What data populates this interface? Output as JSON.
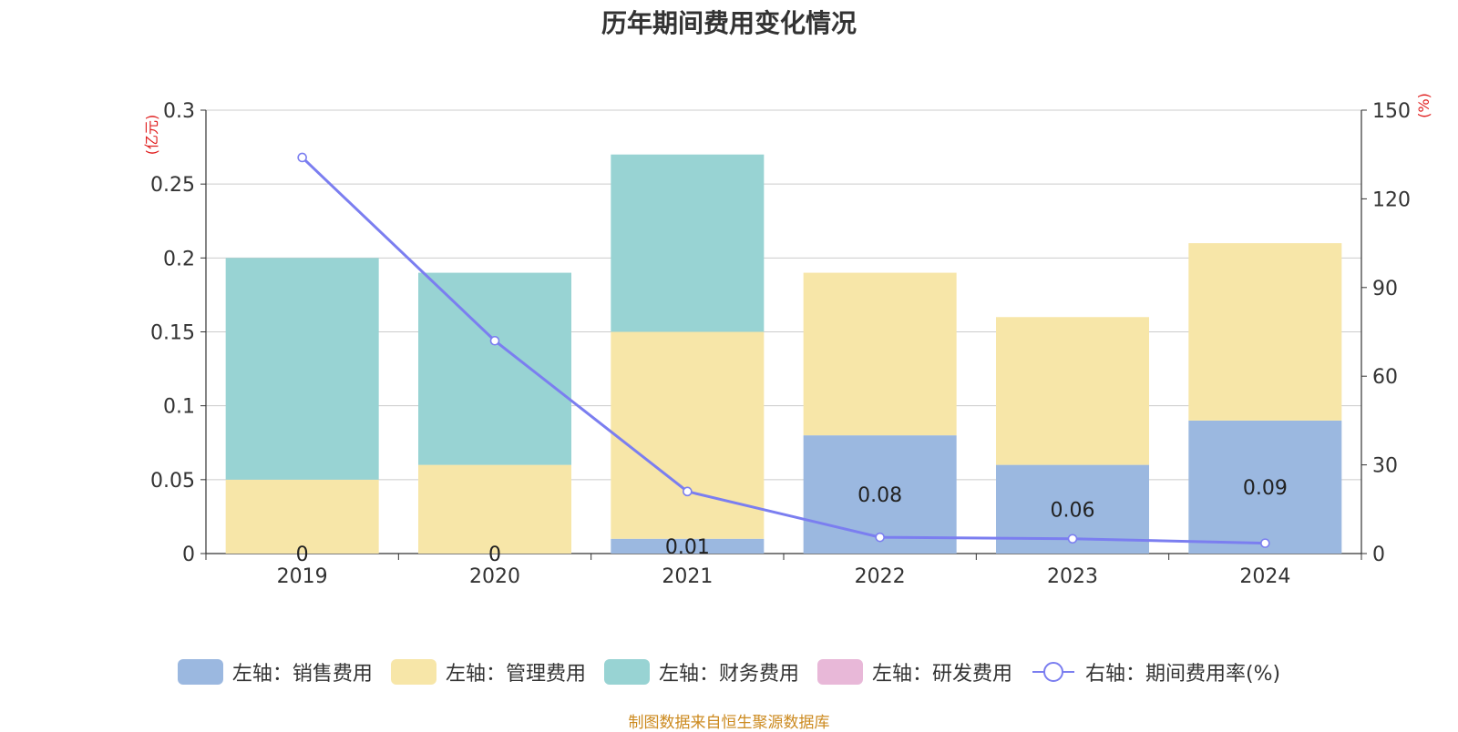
{
  "title": "历年期间费用变化情况",
  "left_axis_unit": "(亿元)",
  "right_axis_unit": "(%)",
  "source_note": "制图数据来自恒生聚源数据库",
  "colors": {
    "sales": "#9bb8e0",
    "admin": "#f7e6a8",
    "finance": "#98d3d3",
    "rd": "#e8b8d8",
    "rate": "#7b7ef0",
    "grid": "#cccccc",
    "axis": "#333333",
    "unit": "#e02020"
  },
  "legend": [
    {
      "label": "左轴：销售费用",
      "type": "swatch",
      "color": "#9bb8e0"
    },
    {
      "label": "左轴：管理费用",
      "type": "swatch",
      "color": "#f7e6a8"
    },
    {
      "label": "左轴：财务费用",
      "type": "swatch",
      "color": "#98d3d3"
    },
    {
      "label": "左轴：研发费用",
      "type": "swatch",
      "color": "#e8b8d8"
    },
    {
      "label": "右轴：期间费用率(%)",
      "type": "line",
      "color": "#7b7ef0"
    }
  ],
  "chart_data": {
    "type": "bar",
    "stacked": true,
    "categories": [
      "2019",
      "2020",
      "2021",
      "2022",
      "2023",
      "2024"
    ],
    "series": [
      {
        "name": "左轴：销售费用",
        "axis": "left",
        "values": [
          0,
          0,
          0.01,
          0.08,
          0.06,
          0.09
        ],
        "labels": [
          "0",
          "0",
          "0.01",
          "0.08",
          "0.06",
          "0.09"
        ]
      },
      {
        "name": "左轴：管理费用",
        "axis": "left",
        "values": [
          0.05,
          0.06,
          0.14,
          0.11,
          0.1,
          0.12
        ]
      },
      {
        "name": "左轴：财务费用",
        "axis": "left",
        "values": [
          0.15,
          0.13,
          0.12,
          0,
          0,
          0
        ]
      },
      {
        "name": "左轴：研发费用",
        "axis": "left",
        "values": [
          0,
          0,
          0,
          0,
          0,
          0
        ]
      },
      {
        "name": "右轴：期间费用率(%)",
        "axis": "right",
        "type": "line",
        "values": [
          134,
          72,
          21,
          5.5,
          5,
          3.5
        ]
      }
    ],
    "left_axis": {
      "min": 0,
      "max": 0.3,
      "ticks": [
        "0",
        "0.05",
        "0.1",
        "0.15",
        "0.2",
        "0.25",
        "0.3"
      ]
    },
    "right_axis": {
      "min": 0,
      "max": 150,
      "ticks": [
        "0",
        "30",
        "60",
        "90",
        "120",
        "150"
      ]
    },
    "grid": true,
    "legend_position": "bottom"
  }
}
